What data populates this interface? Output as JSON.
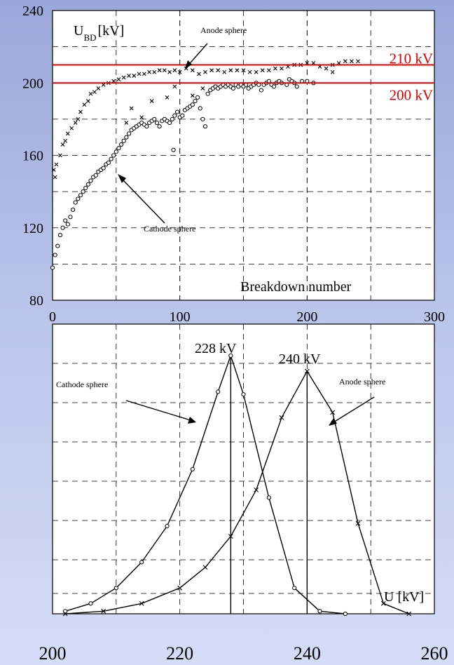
{
  "chart_data": [
    {
      "type": "scatter",
      "xlim": [
        0,
        300
      ],
      "ylim": [
        80,
        240
      ],
      "x_ticks": [
        "0",
        "100",
        "200",
        "300"
      ],
      "y_ticks": [
        "80",
        "120",
        "160",
        "200",
        "240"
      ],
      "ylabel_main": "U",
      "ylabel_sub": "BD",
      "ylabel_unit": "[kV]",
      "xlabel": "Breakdown number",
      "grid": true,
      "annotations": [
        {
          "text": "Anode sphere",
          "x": 105,
          "y": 230
        },
        {
          "text": "Cathode sphere",
          "x": 80,
          "y": 126
        }
      ],
      "reference_lines": [
        {
          "y": 210,
          "label": "210 kV",
          "color": "#e00000"
        },
        {
          "y": 200,
          "label": "200 kV",
          "color": "#e00000"
        }
      ],
      "series": [
        {
          "marker": "x",
          "points": [
            [
              1,
              152
            ],
            [
              2,
              148
            ],
            [
              3,
              155
            ],
            [
              6,
              160
            ],
            [
              8,
              166
            ],
            [
              10,
              168
            ],
            [
              12,
              172
            ],
            [
              15,
              175
            ],
            [
              18,
              178
            ],
            [
              20,
              180
            ],
            [
              22,
              184
            ],
            [
              25,
              188
            ],
            [
              28,
              190
            ],
            [
              30,
              194
            ],
            [
              33,
              195
            ],
            [
              36,
              197
            ],
            [
              40,
              199
            ],
            [
              44,
              200
            ],
            [
              48,
              201
            ],
            [
              52,
              202
            ],
            [
              56,
              203
            ],
            [
              60,
              204
            ],
            [
              64,
              204
            ],
            [
              68,
              205
            ],
            [
              72,
              205
            ],
            [
              76,
              206
            ],
            [
              80,
              206
            ],
            [
              84,
              207
            ],
            [
              88,
              207
            ],
            [
              92,
              206
            ],
            [
              96,
              207
            ],
            [
              100,
              206
            ],
            [
              105,
              208
            ],
            [
              110,
              207
            ],
            [
              115,
              205
            ],
            [
              120,
              206
            ],
            [
              125,
              207
            ],
            [
              130,
              207
            ],
            [
              135,
              206
            ],
            [
              140,
              207
            ],
            [
              145,
              207
            ],
            [
              150,
              207
            ],
            [
              155,
              206
            ],
            [
              160,
              206
            ],
            [
              165,
              207
            ],
            [
              170,
              207
            ],
            [
              175,
              208
            ],
            [
              180,
              208
            ],
            [
              185,
              209
            ],
            [
              190,
              210
            ],
            [
              195,
              210
            ],
            [
              200,
              211
            ],
            [
              205,
              211
            ],
            [
              210,
              209
            ],
            [
              215,
              208
            ],
            [
              220,
              210
            ],
            [
              225,
              211
            ],
            [
              230,
              212
            ],
            [
              235,
              212
            ],
            [
              240,
              212
            ],
            [
              58,
              178
            ],
            [
              62,
              186
            ],
            [
              70,
              181
            ],
            [
              78,
              190
            ],
            [
              90,
              192
            ],
            [
              96,
              198
            ],
            [
              110,
              193
            ],
            [
              118,
              197
            ],
            [
              128,
              198
            ],
            [
              220,
              206
            ]
          ]
        },
        {
          "marker": "o",
          "points": [
            [
              0,
              98
            ],
            [
              2,
              105
            ],
            [
              4,
              110
            ],
            [
              6,
              116
            ],
            [
              8,
              120
            ],
            [
              10,
              124
            ],
            [
              12,
              122
            ],
            [
              14,
              126
            ],
            [
              16,
              130
            ],
            [
              18,
              134
            ],
            [
              20,
              136
            ],
            [
              22,
              138
            ],
            [
              24,
              140
            ],
            [
              26,
              142
            ],
            [
              28,
              144
            ],
            [
              30,
              146
            ],
            [
              32,
              148
            ],
            [
              34,
              149
            ],
            [
              36,
              151
            ],
            [
              38,
              152
            ],
            [
              40,
              153
            ],
            [
              42,
              155
            ],
            [
              44,
              156
            ],
            [
              46,
              158
            ],
            [
              48,
              160
            ],
            [
              50,
              162
            ],
            [
              52,
              164
            ],
            [
              54,
              166
            ],
            [
              56,
              168
            ],
            [
              58,
              170
            ],
            [
              60,
              172
            ],
            [
              62,
              174
            ],
            [
              64,
              175
            ],
            [
              66,
              176
            ],
            [
              68,
              177
            ],
            [
              70,
              178
            ],
            [
              72,
              177
            ],
            [
              74,
              176
            ],
            [
              76,
              178
            ],
            [
              78,
              179
            ],
            [
              80,
              180
            ],
            [
              82,
              178
            ],
            [
              84,
              176
            ],
            [
              86,
              179
            ],
            [
              88,
              180
            ],
            [
              90,
              179
            ],
            [
              92,
              178
            ],
            [
              94,
              180
            ],
            [
              96,
              182
            ],
            [
              98,
              184
            ],
            [
              100,
              181
            ],
            [
              102,
              182
            ],
            [
              104,
              185
            ],
            [
              106,
              186
            ],
            [
              108,
              187
            ],
            [
              110,
              188
            ],
            [
              112,
              190
            ],
            [
              114,
              192
            ],
            [
              116,
              186
            ],
            [
              118,
              180
            ],
            [
              120,
              176
            ],
            [
              122,
              194
            ],
            [
              124,
              196
            ],
            [
              126,
              197
            ],
            [
              128,
              198
            ],
            [
              130,
              197
            ],
            [
              132,
              198
            ],
            [
              134,
              199
            ],
            [
              136,
              198
            ],
            [
              138,
              199
            ],
            [
              140,
              198
            ],
            [
              142,
              197
            ],
            [
              144,
              199
            ],
            [
              146,
              198
            ],
            [
              148,
              199
            ],
            [
              150,
              198
            ],
            [
              152,
              199
            ],
            [
              154,
              197
            ],
            [
              156,
              198
            ],
            [
              158,
              199
            ],
            [
              160,
              200
            ],
            [
              162,
              199
            ],
            [
              164,
              196
            ],
            [
              166,
              199
            ],
            [
              168,
              200
            ],
            [
              170,
              201
            ],
            [
              172,
              199
            ],
            [
              174,
              198
            ],
            [
              176,
              200
            ],
            [
              178,
              201
            ],
            [
              180,
              200
            ],
            [
              184,
              199
            ],
            [
              186,
              202
            ],
            [
              188,
              201
            ],
            [
              190,
              200
            ],
            [
              192,
              198
            ],
            [
              196,
              201
            ],
            [
              200,
              201
            ],
            [
              205,
              200
            ],
            [
              95,
              163
            ]
          ]
        }
      ]
    },
    {
      "type": "line",
      "xlim": [
        200,
        260
      ],
      "x_ticks": [
        "200",
        "220",
        "240",
        "260"
      ],
      "xlabel": "U [kV]",
      "grid": true,
      "annotations": [
        {
          "text": "Cathode sphere",
          "x": 205,
          "y": 0.77
        },
        {
          "text": "Anode sphere",
          "x": 243,
          "y": 0.78
        },
        {
          "text": "228 kV",
          "x": 228,
          "y": 1.02
        },
        {
          "text": "240 kV",
          "x": 240,
          "y": 0.96
        }
      ],
      "series": [
        {
          "name": "Cathode sphere",
          "marker": "o",
          "peak": 228,
          "x": [
            202,
            206,
            210,
            214,
            218,
            222,
            226,
            228,
            230,
            234,
            238,
            242,
            246
          ],
          "y": [
            0.01,
            0.04,
            0.1,
            0.2,
            0.34,
            0.56,
            0.86,
            1.0,
            0.85,
            0.45,
            0.1,
            0.01,
            0.0
          ]
        },
        {
          "name": "Anode sphere",
          "marker": "x",
          "peak": 240,
          "x": [
            202,
            208,
            214,
            220,
            224,
            228,
            232,
            236,
            240,
            244,
            248,
            252,
            256
          ],
          "y": [
            0.0,
            0.01,
            0.04,
            0.1,
            0.18,
            0.3,
            0.48,
            0.76,
            0.94,
            0.78,
            0.35,
            0.04,
            0.0
          ]
        }
      ]
    }
  ]
}
